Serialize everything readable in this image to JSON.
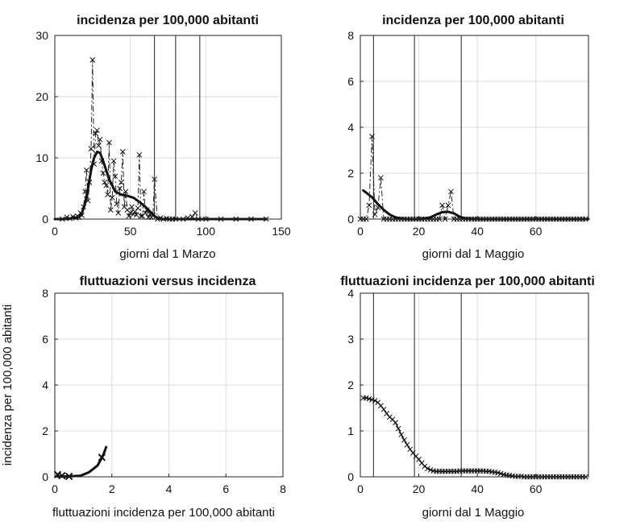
{
  "chart_data": [
    {
      "type": "line",
      "title": "incidenza per 100,000 abitanti",
      "xlabel": "giorni dal 1 Marzo",
      "ylabel": "",
      "xlim": [
        0,
        150
      ],
      "ylim": [
        0,
        30
      ],
      "xticks": [
        0,
        50,
        100,
        150
      ],
      "yticks": [
        0,
        10,
        20,
        30
      ],
      "grid": true,
      "vlines": [
        66,
        80,
        96
      ],
      "series": [
        {
          "style": "dash-dot-cross",
          "x": [
            5,
            8,
            10,
            12,
            14,
            15,
            16,
            17,
            18,
            19,
            20,
            21,
            22,
            23,
            24,
            25,
            26,
            27,
            28,
            29,
            30,
            31,
            32,
            33,
            34,
            35,
            36,
            37,
            38,
            39,
            40,
            41,
            42,
            43,
            44,
            45,
            46,
            47,
            48,
            49,
            50,
            51,
            52,
            53,
            54,
            55,
            56,
            57,
            58,
            59,
            60,
            61,
            62,
            63,
            64,
            65,
            66,
            68,
            70,
            72,
            74,
            76,
            78,
            80,
            85,
            88,
            91,
            93,
            95,
            100,
            110,
            120,
            130,
            140
          ],
          "values": [
            0,
            0.3,
            0.1,
            0.4,
            0.2,
            0.5,
            0.3,
            1.0,
            0.6,
            2.0,
            4.5,
            8.0,
            3.0,
            6.0,
            11.5,
            26.0,
            9.0,
            14.0,
            14.5,
            12.0,
            13.0,
            9.5,
            7.5,
            6.0,
            5.5,
            4.0,
            12.5,
            1.5,
            3.5,
            9.5,
            7.0,
            2.5,
            1.0,
            5.0,
            6.0,
            11.0,
            2.0,
            4.5,
            1.5,
            0.5,
            1.0,
            2.0,
            0.8,
            1.2,
            0.7,
            1.8,
            10.5,
            0.5,
            0.5,
            4.5,
            1.0,
            1.5,
            0.3,
            0.8,
            0.3,
            0.6,
            6.5,
            0,
            0.2,
            0,
            0.1,
            0,
            0,
            0,
            0,
            0.2,
            0.4,
            1.0,
            0,
            0,
            0,
            0,
            0,
            0
          ]
        },
        {
          "style": "smooth-thick",
          "x": [
            0,
            5,
            10,
            15,
            18,
            20,
            22,
            24,
            26,
            28,
            30,
            32,
            34,
            36,
            38,
            40,
            44,
            48,
            52,
            56,
            60,
            64,
            66,
            68,
            70,
            80,
            100,
            140
          ],
          "values": [
            0,
            0,
            0.05,
            0.3,
            1.0,
            2.5,
            5.0,
            8.0,
            10.0,
            11.0,
            10.8,
            9.5,
            8.0,
            6.5,
            5.5,
            4.5,
            4.0,
            3.8,
            3.5,
            2.8,
            2.0,
            1.0,
            0.5,
            0.2,
            0,
            0,
            0,
            0
          ]
        }
      ]
    },
    {
      "type": "line",
      "title": "incidenza per 100,000 abitanti",
      "xlabel": "giorni dal 1 Maggio",
      "ylabel": "",
      "xlim": [
        0,
        78
      ],
      "ylim": [
        0,
        8
      ],
      "xticks": [
        0,
        20,
        40,
        60
      ],
      "yticks": [
        0,
        2,
        4,
        6,
        8
      ],
      "grid": true,
      "vlines": [
        4.5,
        18.5,
        34.5
      ],
      "series": [
        {
          "style": "dash-dot-cross",
          "x": [
            0,
            1,
            2,
            3,
            4,
            5,
            6,
            7,
            8,
            9,
            10,
            11,
            12,
            13,
            14,
            15,
            16,
            17,
            18,
            19,
            20,
            21,
            22,
            23,
            24,
            25,
            26,
            27,
            28,
            29,
            30,
            31,
            32,
            33,
            34,
            35,
            36,
            37,
            38,
            39,
            40,
            41,
            42,
            43,
            44,
            45,
            46,
            47,
            48,
            49,
            50,
            51,
            52,
            53,
            54,
            55,
            56,
            57,
            58,
            59,
            60,
            61,
            62,
            63,
            64,
            65,
            66,
            67,
            68,
            69,
            70,
            71,
            72,
            73,
            74,
            75,
            76,
            77
          ],
          "values": [
            0,
            0,
            0,
            0.6,
            3.6,
            0.2,
            0.5,
            1.8,
            0,
            0,
            0,
            0,
            0,
            0,
            0,
            0,
            0,
            0,
            0,
            0,
            0,
            0,
            0,
            0,
            0,
            0,
            0,
            0,
            0.6,
            0,
            0.6,
            1.2,
            0,
            0,
            0,
            0,
            0,
            0,
            0,
            0,
            0,
            0,
            0,
            0,
            0,
            0,
            0,
            0,
            0,
            0,
            0,
            0,
            0,
            0,
            0,
            0,
            0,
            0,
            0,
            0,
            0,
            0,
            0,
            0,
            0,
            0,
            0,
            0,
            0,
            0,
            0,
            0,
            0,
            0,
            0,
            0,
            0,
            0
          ]
        },
        {
          "style": "smooth-thick",
          "x": [
            1,
            2,
            4,
            6,
            8,
            10,
            12,
            14,
            16,
            18,
            20,
            22,
            24,
            26,
            28,
            30,
            32,
            34,
            36,
            40,
            50,
            60,
            78
          ],
          "values": [
            1.25,
            1.15,
            0.95,
            0.65,
            0.4,
            0.2,
            0.08,
            0.02,
            0,
            0,
            0,
            0.02,
            0.08,
            0.2,
            0.3,
            0.32,
            0.25,
            0.1,
            0.02,
            0,
            0,
            0,
            0
          ]
        }
      ]
    },
    {
      "type": "line",
      "title": "fluttuazioni versus incidenza",
      "xlabel": "fluttuazioni incidenza per 100,000 abitanti",
      "ylabel": "incidenza per 100,000 abitanti",
      "xlim": [
        0,
        8
      ],
      "ylim": [
        0,
        8
      ],
      "xticks": [
        0,
        2,
        4,
        6,
        8
      ],
      "yticks": [
        0,
        2,
        4,
        6,
        8
      ],
      "grid": true,
      "vlines": [],
      "series": [
        {
          "style": "smooth-thick",
          "x": [
            0.05,
            0.2,
            0.5,
            0.9,
            1.2,
            1.5,
            1.7,
            1.8
          ],
          "values": [
            0.02,
            0.01,
            0.02,
            0.05,
            0.2,
            0.5,
            0.95,
            1.3
          ]
        },
        {
          "style": "cross",
          "x": [
            0.1,
            0.25,
            0.5,
            1.65
          ],
          "values": [
            0.1,
            0.05,
            0.02,
            0.85
          ]
        }
      ]
    },
    {
      "type": "line",
      "title": "fluttuazioni incidenza per 100,000 abitanti",
      "xlabel": "giorni dal 1 Maggio",
      "ylabel": "",
      "xlim": [
        0,
        78
      ],
      "ylim": [
        0,
        4
      ],
      "xticks": [
        0,
        20,
        40,
        60
      ],
      "yticks": [
        0,
        1,
        2,
        3,
        4
      ],
      "grid": true,
      "vlines": [
        4.5,
        18.5,
        34.5
      ],
      "series": [
        {
          "style": "solid-cross",
          "x": [
            1,
            2,
            3,
            4,
            5,
            6,
            7,
            8,
            9,
            10,
            11,
            12,
            13,
            14,
            15,
            16,
            17,
            18,
            19,
            20,
            21,
            22,
            23,
            24,
            25,
            26,
            27,
            28,
            29,
            30,
            31,
            32,
            33,
            34,
            35,
            36,
            37,
            38,
            39,
            40,
            41,
            42,
            43,
            44,
            45,
            46,
            47,
            48,
            49,
            50,
            51,
            52,
            53,
            54,
            55,
            56,
            57,
            58,
            59,
            60,
            61,
            62,
            63,
            64,
            65,
            66,
            67,
            68,
            69,
            70,
            71,
            72,
            73,
            74,
            75,
            76,
            77
          ],
          "values": [
            1.72,
            1.72,
            1.7,
            1.68,
            1.66,
            1.62,
            1.55,
            1.47,
            1.38,
            1.3,
            1.25,
            1.18,
            1.05,
            0.92,
            0.8,
            0.7,
            0.6,
            0.52,
            0.45,
            0.38,
            0.3,
            0.23,
            0.18,
            0.15,
            0.13,
            0.12,
            0.12,
            0.12,
            0.12,
            0.12,
            0.12,
            0.12,
            0.12,
            0.13,
            0.13,
            0.13,
            0.13,
            0.13,
            0.13,
            0.13,
            0.13,
            0.13,
            0.12,
            0.12,
            0.11,
            0.1,
            0.09,
            0.07,
            0.05,
            0.04,
            0.03,
            0.02,
            0.01,
            0.01,
            0.01,
            0,
            0,
            0,
            0,
            0,
            0,
            0,
            0,
            0,
            0,
            0,
            0,
            0,
            0,
            0,
            0,
            0,
            0,
            0,
            0,
            0,
            0
          ]
        }
      ]
    }
  ]
}
